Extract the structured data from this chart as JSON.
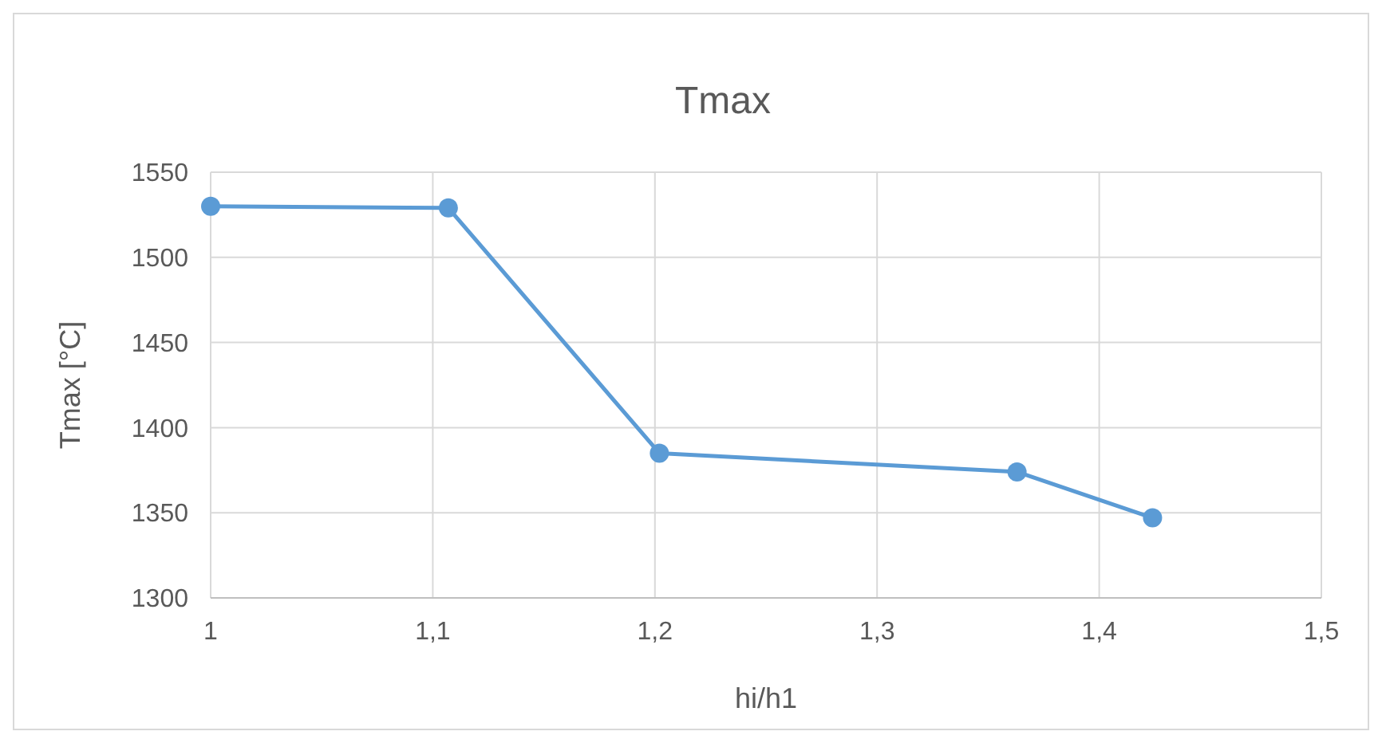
{
  "chart_data": {
    "type": "line",
    "title": "Tmax",
    "xlabel": "hi/h1",
    "ylabel": "Tmax [°C]",
    "x": [
      1,
      1.107,
      1.202,
      1.363,
      1.424
    ],
    "series": [
      {
        "color": "#5b9bd5",
        "values": [
          1530,
          1529,
          1385,
          1374,
          1347
        ]
      }
    ],
    "xlim": [
      1,
      1.5
    ],
    "xticks": [
      1,
      {
        "value": 1.1,
        "label": "1,1"
      },
      {
        "value": 1.2,
        "label": "1,2"
      },
      {
        "value": 1.3,
        "label": "1,3"
      },
      {
        "value": 1.4,
        "label": "1,4"
      },
      {
        "value": 1.5,
        "label": "1,5"
      }
    ],
    "ylim": [
      1300,
      1550
    ],
    "yticks": [
      1300,
      1350,
      1400,
      1450,
      1500,
      1550
    ],
    "grid": true,
    "marker": "circle",
    "line_style": "solid"
  }
}
